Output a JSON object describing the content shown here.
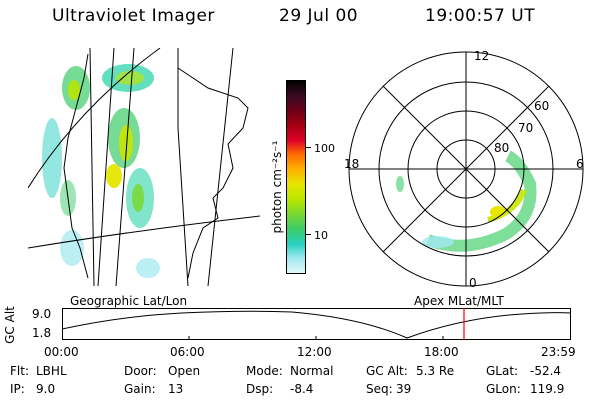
{
  "header": {
    "title": "Ultraviolet Imager",
    "date": "29 Jul 00",
    "time": "19:00:57 UT"
  },
  "map": {
    "caption": "Geographic Lat/Lon"
  },
  "colorbar": {
    "unit_label": "photon cm⁻²s⁻¹",
    "ticks": [
      "100",
      "10"
    ],
    "colors": [
      "#000000",
      "#3a0b22",
      "#6a0018",
      "#a40012",
      "#e0002a",
      "#ff6a00",
      "#ffb000",
      "#e6e600",
      "#b7e600",
      "#7ad830",
      "#3ccc66",
      "#28d0c2",
      "#9fe8f0",
      "#e4f8fb"
    ]
  },
  "polar": {
    "caption": "Apex MLat/MLT",
    "lat_labels": [
      "60",
      "70",
      "80"
    ],
    "mlt_labels": {
      "top": "12",
      "left": "18",
      "right": "6",
      "bottom": "0"
    }
  },
  "timeline": {
    "ylabel": "GC Alt",
    "ytick_top": "9.0",
    "ytick_bottom": "1.8",
    "xticks": [
      "00:00",
      "06:00",
      "12:00",
      "18:00",
      "23:59"
    ],
    "current_time_marker_color": "#ff0000"
  },
  "info": {
    "filter": {
      "label": "Flt:",
      "value": "LBHL"
    },
    "ip": {
      "label": "IP:",
      "value": "9.0"
    },
    "door": {
      "label": "Door:",
      "value": "Open"
    },
    "gain": {
      "label": "Gain:",
      "value": "13"
    },
    "mode": {
      "label": "Mode:",
      "value": "Normal"
    },
    "dsp": {
      "label": "Dsp:",
      "value": "-8.4"
    },
    "gc_alt": {
      "label": "GC Alt:",
      "value": "5.3 Re"
    },
    "seq": {
      "label": "Seq:",
      "value": "39"
    },
    "glat": {
      "label": "GLat:",
      "value": "-52.4"
    },
    "glon": {
      "label": "GLon:",
      "value": "119.9"
    }
  }
}
